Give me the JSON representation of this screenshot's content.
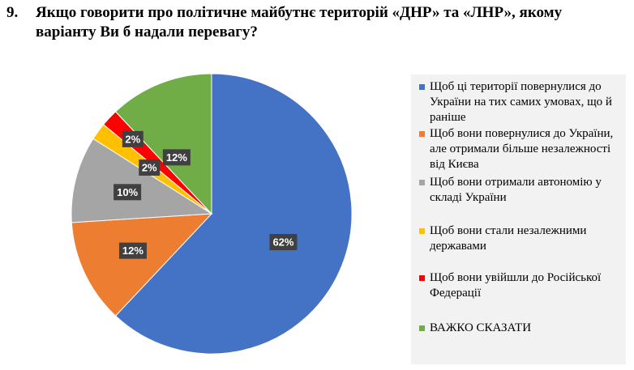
{
  "question": {
    "number": "9.",
    "text": "Якщо говорити про політичне майбутнє територій «ДНР» та «ЛНР», якому варіанту Ви б надали перевагу?"
  },
  "chart_data": {
    "type": "pie",
    "title": "",
    "start_angle_deg": 0,
    "direction": "clockwise",
    "legend_position": "right",
    "label_box_color": "#404040",
    "slices": [
      {
        "name": "Щоб ці території  повернулися  до України на тих самих умовах, що й раніше",
        "value": 62,
        "label": "62%",
        "color": "#4472C4"
      },
      {
        "name": "Щоб вони  повернулися до України, але отримали більше незалежності від Києва",
        "value": 12,
        "label": "12%",
        "color": "#ED7D31"
      },
      {
        "name": "Щоб вони отримали автономію у складі України",
        "value": 10,
        "label": "10%",
        "color": "#A5A5A5"
      },
      {
        "name": "Щоб вони  стали незалежними державами",
        "value": 2,
        "label": "2%",
        "color": "#FFC000"
      },
      {
        "name": "Щоб вони увійшли до Російської Федерації",
        "value": 2,
        "label": "2%",
        "color": "#FF0000"
      },
      {
        "name": "ВАЖКО СКАЗАТИ",
        "value": 12,
        "label": "12%",
        "color": "#70AD47"
      }
    ]
  }
}
